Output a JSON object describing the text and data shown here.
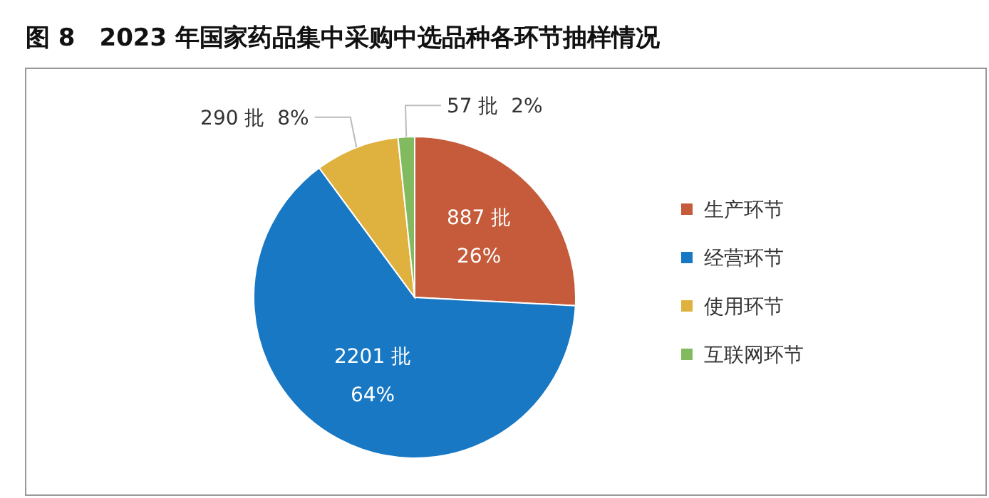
{
  "chart_data": {
    "type": "pie",
    "title": "图 8　2023 年国家药品集中采购中选品种各环节抽样情况",
    "categories": [
      "生产环节",
      "经营环节",
      "使用环节",
      "互联网环节"
    ],
    "values": [
      887,
      2201,
      290,
      57
    ],
    "colors": [
      "#c55b3b",
      "#1878c4",
      "#dfb13f",
      "#82bb5f"
    ],
    "value_labels": [
      "887 批\n26%",
      "2201 批\n64%",
      "290 批\n8%",
      "57 批\n2%"
    ],
    "legend": "right"
  }
}
